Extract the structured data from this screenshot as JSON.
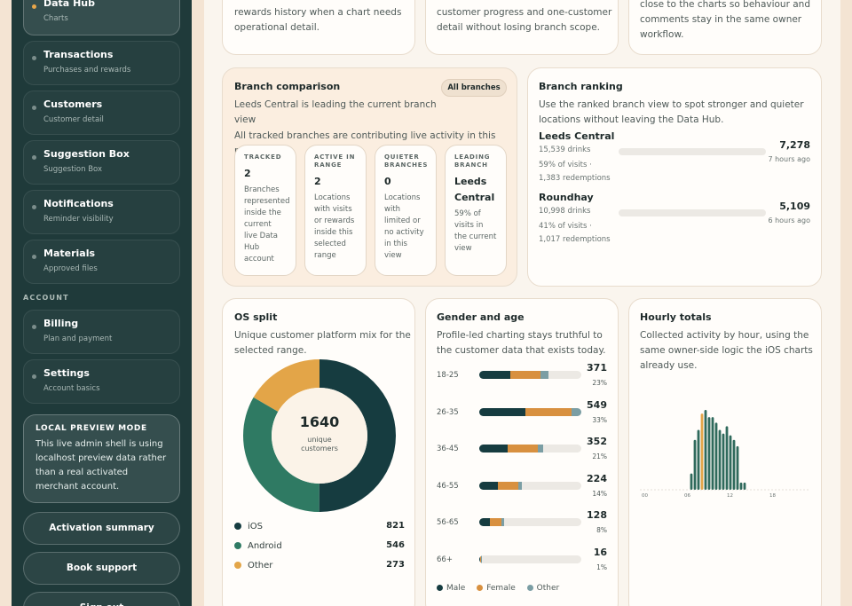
{
  "sidebar": {
    "items": [
      {
        "label": "Data Hub",
        "sub": "Charts",
        "active": true
      },
      {
        "label": "Transactions",
        "sub": "Purchases and rewards"
      },
      {
        "label": "Customers",
        "sub": "Customer detail"
      },
      {
        "label": "Suggestion Box",
        "sub": "Suggestion Box"
      },
      {
        "label": "Notifications",
        "sub": "Reminder visibility"
      },
      {
        "label": "Materials",
        "sub": "Approved files"
      }
    ],
    "account_heading": "ACCOUNT",
    "account_items": [
      {
        "label": "Billing",
        "sub": "Plan and payment"
      },
      {
        "label": "Settings",
        "sub": "Account basics"
      }
    ],
    "preview": {
      "title": "LOCAL PREVIEW MODE",
      "text": "This live admin shell is using localhost preview data rather than a real activated merchant account."
    },
    "activation_label": "Activation summary",
    "support_label": "Book support",
    "signout_label": "Sign out"
  },
  "top_cards": [
    {
      "text_l1": "rewards history when a chart needs",
      "text_l2": "operational detail."
    },
    {
      "text_l1": "customer progress and one-customer",
      "text_l2": "detail without losing branch scope."
    },
    {
      "text_l0": "close to the charts so behaviour and",
      "text_l1": "comments stay in the same owner",
      "text_l2": "workflow."
    }
  ],
  "branch_comparison": {
    "title": "Branch comparison",
    "filter_label": "All branches",
    "summary": "Leeds Central is leading the current branch view",
    "note": "All tracked branches are contributing live activity in this range.",
    "stats": [
      {
        "key": "TRACKED",
        "value": "2",
        "note": "Branches represented inside the current live Data Hub account"
      },
      {
        "key": "ACTIVE IN RANGE",
        "value": "2",
        "note": "Locations with visits or rewards inside this selected range"
      },
      {
        "key": "QUIETER BRANCHES",
        "value": "0",
        "note": "Locations with limited or no activity in this view"
      },
      {
        "key": "LEADING BRANCH",
        "value": "Leeds Central",
        "note": "59% of visits in the current view"
      }
    ]
  },
  "branch_ranking": {
    "title": "Branch ranking",
    "desc": "Use the ranked branch view to spot stronger and quieter locations without leaving the Data Hub.",
    "rows": [
      {
        "name": "Leeds Central",
        "drinks": "15,539 drinks",
        "detail": "59% of visits · 1,383 redemptions",
        "value": "7,278",
        "ago": "7 hours ago"
      },
      {
        "name": "Roundhay",
        "drinks": "10,998 drinks",
        "detail": "41% of visits · 1,017 redemptions",
        "value": "5,109",
        "ago": "6 hours ago"
      }
    ]
  },
  "os_split": {
    "title": "OS split",
    "desc": "Unique customer platform mix for the selected range.",
    "total": "1640",
    "total_label": "unique customers",
    "legend": [
      {
        "name": "iOS",
        "value": "821",
        "color": "#163c40"
      },
      {
        "name": "Android",
        "value": "546",
        "color": "#2f7a63"
      },
      {
        "name": "Other",
        "value": "273",
        "color": "#e3a548"
      }
    ]
  },
  "gender_age": {
    "title": "Gender and age",
    "desc": "Profile-led charting stays truthful to the customer data that exists today.",
    "rows": [
      {
        "label": "18-25",
        "value": "371",
        "pct": "23%",
        "male": 0.3,
        "female": 0.3,
        "other": 0.08
      },
      {
        "label": "26-35",
        "value": "549",
        "pct": "33%",
        "male": 0.45,
        "female": 0.45,
        "other": 0.1
      },
      {
        "label": "36-45",
        "value": "352",
        "pct": "21%",
        "male": 0.28,
        "female": 0.29,
        "other": 0.06
      },
      {
        "label": "46-55",
        "value": "224",
        "pct": "14%",
        "male": 0.18,
        "female": 0.2,
        "other": 0.04
      },
      {
        "label": "56-65",
        "value": "128",
        "pct": "8%",
        "male": 0.1,
        "female": 0.12,
        "other": 0.02
      },
      {
        "label": "66+",
        "value": "16",
        "pct": "1%",
        "male": 0.01,
        "female": 0.01,
        "other": 0.005
      }
    ],
    "legend": [
      {
        "name": "Male",
        "color": "#163c40"
      },
      {
        "name": "Female",
        "color": "#d8903f"
      },
      {
        "name": "Other",
        "color": "#7b9ea4"
      }
    ]
  },
  "hourly": {
    "title": "Hourly totals",
    "desc": "Collected activity by hour, using the same owner-side logic the iOS charts already use.",
    "chart_data": {
      "type": "bar",
      "x_ticks": [
        "00",
        "06",
        "12",
        "18"
      ],
      "values": [
        0,
        0,
        0,
        0,
        0,
        0,
        0,
        0,
        0,
        0,
        0,
        0,
        0,
        0,
        18,
        55,
        66,
        84,
        88,
        80,
        80,
        74,
        66,
        62,
        70,
        60,
        55,
        48,
        8,
        8,
        0,
        0,
        0,
        0,
        0,
        0,
        0,
        0,
        0,
        0,
        0,
        0,
        0,
        0,
        0,
        0,
        0,
        0
      ]
    }
  }
}
